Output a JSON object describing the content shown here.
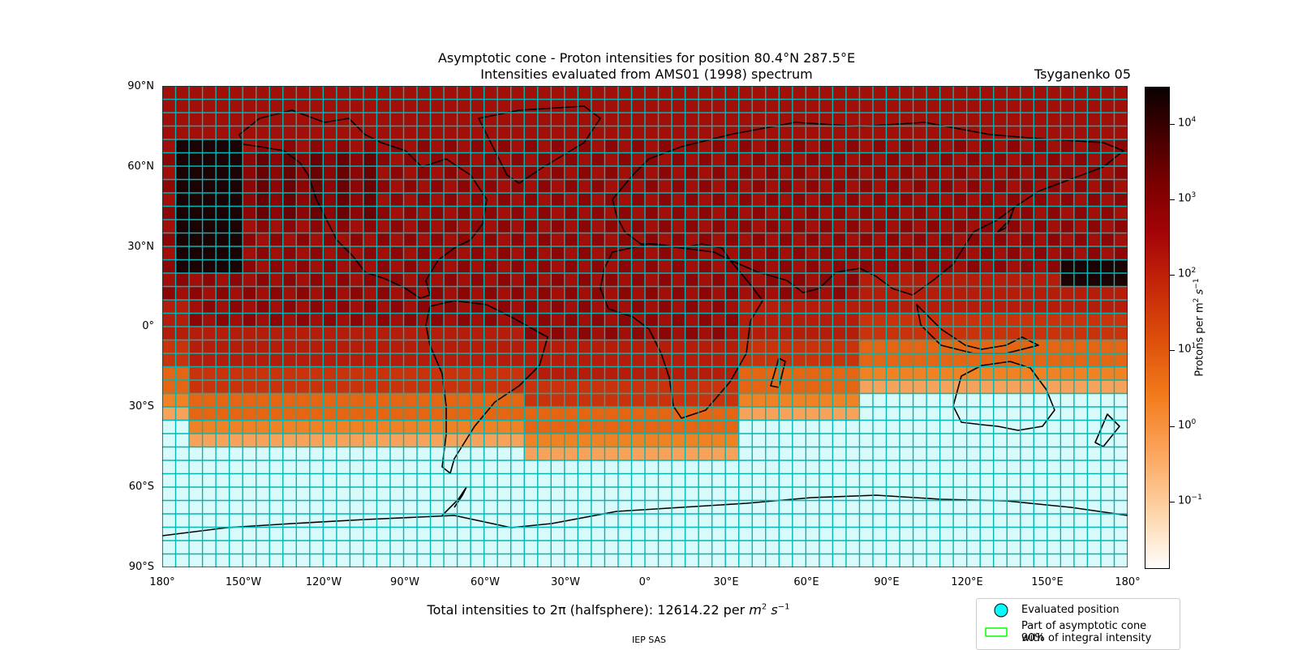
{
  "title_line1": "Asymptotic cone - Proton intensities for position 80.4°N 287.5°E",
  "title_line2": "Intensities evaluated from AMS01 (1998) spectrum",
  "model": "Tsyganenko 05",
  "lat_ticks": [
    "90°N",
    "60°N",
    "30°N",
    "0°",
    "30°S",
    "60°S",
    "90°S"
  ],
  "lon_ticks": [
    "180°",
    "150°W",
    "120°W",
    "90°W",
    "60°W",
    "30°W",
    "0°",
    "30°E",
    "60°E",
    "90°E",
    "120°E",
    "150°E",
    "180°"
  ],
  "total_prefix": "Total intensities to ",
  "total_2pi": "2π",
  "total_mid": " (halfsphere): 12614.22 per ",
  "total_m": "m",
  "total_exp2": "2",
  "total_s": "s",
  "total_expm1": "−1",
  "credit": "IEP SAS",
  "colorbar": {
    "label_main": "Protons per m",
    "label_exp": "2",
    "label_s": " s",
    "label_sexp": "−1",
    "ticks": [
      {
        "base": "10",
        "exp": "4"
      },
      {
        "base": "10",
        "exp": "3"
      },
      {
        "base": "10",
        "exp": "2"
      },
      {
        "base": "10",
        "exp": "1"
      },
      {
        "base": "10",
        "exp": "0"
      },
      {
        "base": "10",
        "exp": "−1"
      }
    ],
    "scale": "log"
  },
  "legend": {
    "evaluated": "Evaluated position",
    "cone_line1": "Part of asymptotic cone with",
    "cone_line2": "90% of integral intensity"
  },
  "colors": {
    "grid_line": "#00b7b5",
    "empty_cell": "#d9fafa",
    "evaluated_marker": "#00ffff",
    "cone_outline": "#00ff00"
  }
}
